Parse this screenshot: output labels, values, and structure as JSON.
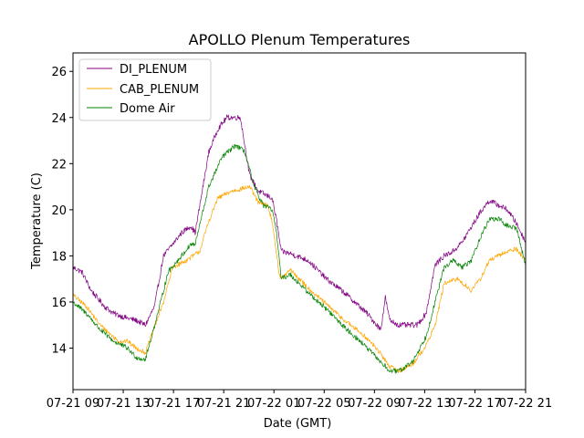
{
  "chart_data": {
    "type": "line",
    "title": "APOLLO Plenum Temperatures",
    "xlabel": "Date (GMT)",
    "ylabel": "Temperature (C)",
    "xlim": [
      0,
      1
    ],
    "ylim": [
      12.2,
      26.8
    ],
    "yticks": [
      14,
      16,
      18,
      20,
      22,
      24,
      26
    ],
    "xticks": [
      {
        "pos": 0.0,
        "label": "07-21 09"
      },
      {
        "pos": 0.111,
        "label": "07-21 13"
      },
      {
        "pos": 0.222,
        "label": "07-21 17"
      },
      {
        "pos": 0.333,
        "label": "07-21 21"
      },
      {
        "pos": 0.444,
        "label": "07-22 01"
      },
      {
        "pos": 0.555,
        "label": "07-22 05"
      },
      {
        "pos": 0.666,
        "label": "07-22 09"
      },
      {
        "pos": 0.777,
        "label": "07-22 13"
      },
      {
        "pos": 0.888,
        "label": "07-22 17"
      },
      {
        "pos": 1.0,
        "label": "07-22 21"
      }
    ],
    "legend_location": "top-left",
    "series": [
      {
        "name": "DI_PLENUM",
        "color": "#800080",
        "noise": 0.12,
        "x": [
          0.0,
          0.02,
          0.04,
          0.07,
          0.09,
          0.12,
          0.14,
          0.16,
          0.18,
          0.2,
          0.22,
          0.24,
          0.26,
          0.27,
          0.3,
          0.32,
          0.34,
          0.37,
          0.39,
          0.41,
          0.44,
          0.45,
          0.46,
          0.48,
          0.52,
          0.56,
          0.6,
          0.65,
          0.68,
          0.69,
          0.7,
          0.72,
          0.76,
          0.78,
          0.8,
          0.82,
          0.84,
          0.86,
          0.9,
          0.92,
          0.94,
          0.96,
          0.98,
          1.0
        ],
        "y": [
          17.5,
          17.3,
          16.5,
          15.8,
          15.5,
          15.3,
          15.2,
          15.0,
          15.8,
          18.0,
          18.5,
          19.0,
          19.3,
          19.0,
          22.5,
          23.5,
          24.0,
          24.0,
          21.5,
          20.8,
          20.5,
          19.5,
          18.2,
          18.1,
          17.8,
          17.0,
          16.4,
          15.5,
          14.8,
          16.2,
          15.2,
          15.0,
          15.0,
          15.5,
          17.6,
          18.0,
          18.2,
          18.6,
          19.9,
          20.4,
          20.2,
          20.0,
          19.4,
          18.6
        ]
      },
      {
        "name": "CAB_PLENUM",
        "color": "#FFA500",
        "noise": 0.1,
        "x": [
          0.0,
          0.03,
          0.06,
          0.1,
          0.12,
          0.14,
          0.16,
          0.2,
          0.22,
          0.25,
          0.28,
          0.3,
          0.32,
          0.35,
          0.39,
          0.41,
          0.43,
          0.44,
          0.455,
          0.46,
          0.48,
          0.52,
          0.56,
          0.6,
          0.64,
          0.67,
          0.7,
          0.72,
          0.75,
          0.78,
          0.8,
          0.82,
          0.85,
          0.88,
          0.9,
          0.92,
          0.94,
          0.96,
          0.98,
          1.0
        ],
        "y": [
          16.3,
          15.8,
          15.0,
          14.3,
          14.3,
          14.0,
          13.8,
          16.0,
          17.5,
          17.8,
          18.2,
          19.5,
          20.5,
          20.8,
          21.0,
          20.3,
          20.2,
          19.5,
          17.3,
          17.0,
          17.4,
          16.6,
          15.9,
          15.2,
          14.6,
          14.0,
          13.2,
          13.0,
          13.3,
          14.1,
          15.0,
          16.8,
          17.0,
          16.5,
          17.0,
          17.8,
          18.0,
          18.2,
          18.3,
          17.8
        ]
      },
      {
        "name": "Dome Air",
        "color": "#008000",
        "noise": 0.11,
        "x": [
          0.0,
          0.03,
          0.06,
          0.09,
          0.12,
          0.14,
          0.16,
          0.19,
          0.21,
          0.24,
          0.26,
          0.27,
          0.3,
          0.33,
          0.36,
          0.38,
          0.4,
          0.42,
          0.44,
          0.45,
          0.46,
          0.48,
          0.52,
          0.56,
          0.6,
          0.64,
          0.67,
          0.7,
          0.72,
          0.75,
          0.78,
          0.8,
          0.82,
          0.84,
          0.86,
          0.88,
          0.9,
          0.92,
          0.94,
          0.96,
          0.98,
          1.0
        ],
        "y": [
          16.0,
          15.5,
          14.8,
          14.3,
          14.0,
          13.6,
          13.5,
          15.7,
          17.3,
          18.0,
          18.5,
          18.5,
          21.0,
          22.3,
          22.8,
          22.5,
          21.0,
          20.2,
          20.0,
          19.0,
          17.0,
          17.2,
          16.4,
          15.7,
          14.9,
          14.2,
          13.6,
          13.0,
          13.0,
          13.4,
          14.5,
          16.0,
          17.5,
          17.8,
          17.5,
          17.8,
          18.8,
          19.6,
          19.6,
          19.3,
          19.2,
          17.6
        ]
      }
    ]
  }
}
